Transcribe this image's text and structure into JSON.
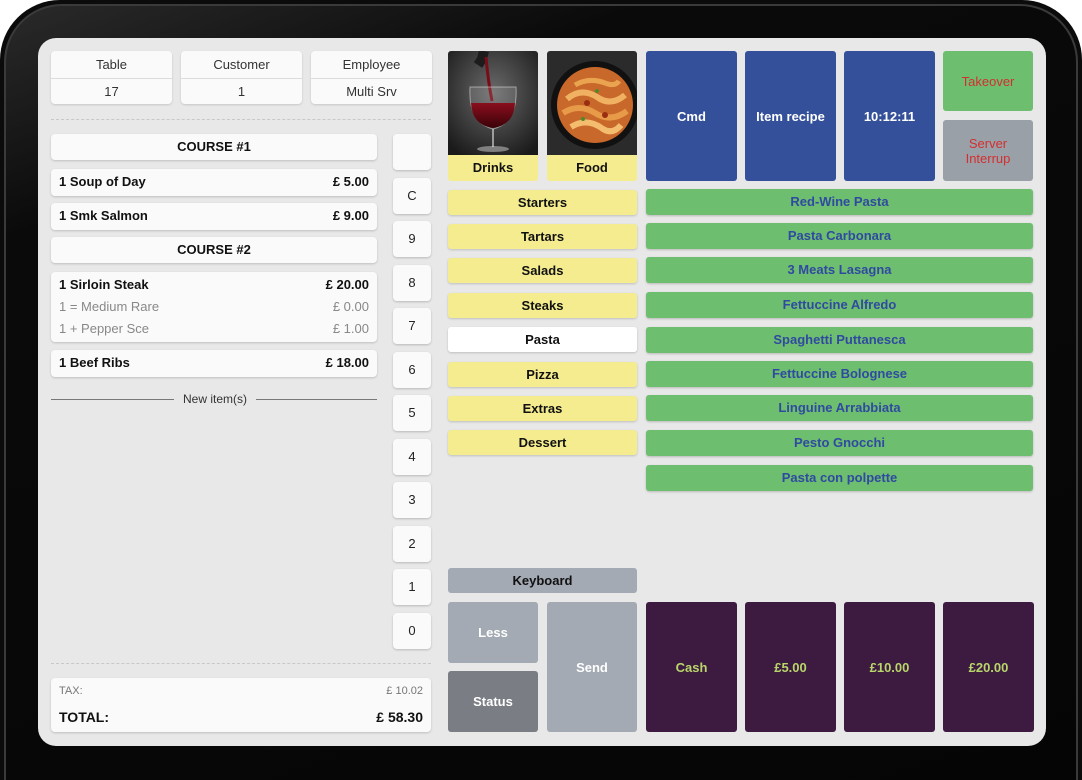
{
  "header": {
    "table": {
      "label": "Table",
      "value": "17"
    },
    "customer": {
      "label": "Customer",
      "value": "1"
    },
    "employee": {
      "label": "Employee",
      "value": "Multi Srv"
    }
  },
  "order": {
    "course1": "COURSE #1",
    "course2": "COURSE #2",
    "items": [
      {
        "name": "1 Soup of Day",
        "price": "£ 5.00"
      },
      {
        "name": "1 Smk Salmon",
        "price": "£ 9.00"
      },
      {
        "name": "1 Sirloin Steak",
        "price": "£ 20.00",
        "mods": [
          {
            "name": "1 = Medium Rare",
            "price": "£ 0.00"
          },
          {
            "name": "1 + Pepper Sce",
            "price": "£ 1.00"
          }
        ]
      },
      {
        "name": "1 Beef Ribs",
        "price": "£ 18.00"
      }
    ],
    "new_items_label": "New item(s)",
    "tax_label": "TAX:",
    "tax_value": "£ 10.02",
    "total_label": "TOTAL:",
    "total_value": "£ 58.30"
  },
  "keypad": [
    "",
    "C",
    "9",
    "8",
    "7",
    "6",
    "5",
    "4",
    "3",
    "2",
    "1",
    "0"
  ],
  "photos": {
    "drinks": "Drinks",
    "food": "Food"
  },
  "top_buttons": {
    "cmd": "Cmd",
    "item_recipe": "Item recipe",
    "clock": "10:12:11",
    "takeover": "Takeover",
    "server_interrupt": "Server Interrup"
  },
  "categories": [
    {
      "label": "Starters",
      "selected": false
    },
    {
      "label": "Tartars",
      "selected": false
    },
    {
      "label": "Salads",
      "selected": false
    },
    {
      "label": "Steaks",
      "selected": false
    },
    {
      "label": "Pasta",
      "selected": true
    },
    {
      "label": "Pizza",
      "selected": false
    },
    {
      "label": "Extras",
      "selected": false
    },
    {
      "label": "Dessert",
      "selected": false
    }
  ],
  "menu_items": [
    "Red-Wine Pasta",
    "Pasta Carbonara",
    "3 Meats Lasagna",
    "Fettuccine Alfredo",
    "Spaghetti Puttanesca",
    "Fettuccine Bolognese",
    "Linguine Arrabbiata",
    "Pesto Gnocchi",
    "Pasta con polpette"
  ],
  "bottom": {
    "keyboard": "Keyboard",
    "less": "Less",
    "status": "Status",
    "send": "Send"
  },
  "payment": [
    "Cash",
    "£5.00",
    "£10.00",
    "£20.00"
  ],
  "colors": {
    "category_yellow": "#f4ec8e",
    "item_green": "#6ebe70",
    "item_text_blue": "#2f4aa0",
    "button_blue": "#34509a",
    "payment_purple": "#3d1a40",
    "payment_text": "#b8d66a",
    "takeover_green": "#6ebe70",
    "takeover_text": "#d32f2f",
    "interrupt_gray": "#9aa0a8"
  }
}
